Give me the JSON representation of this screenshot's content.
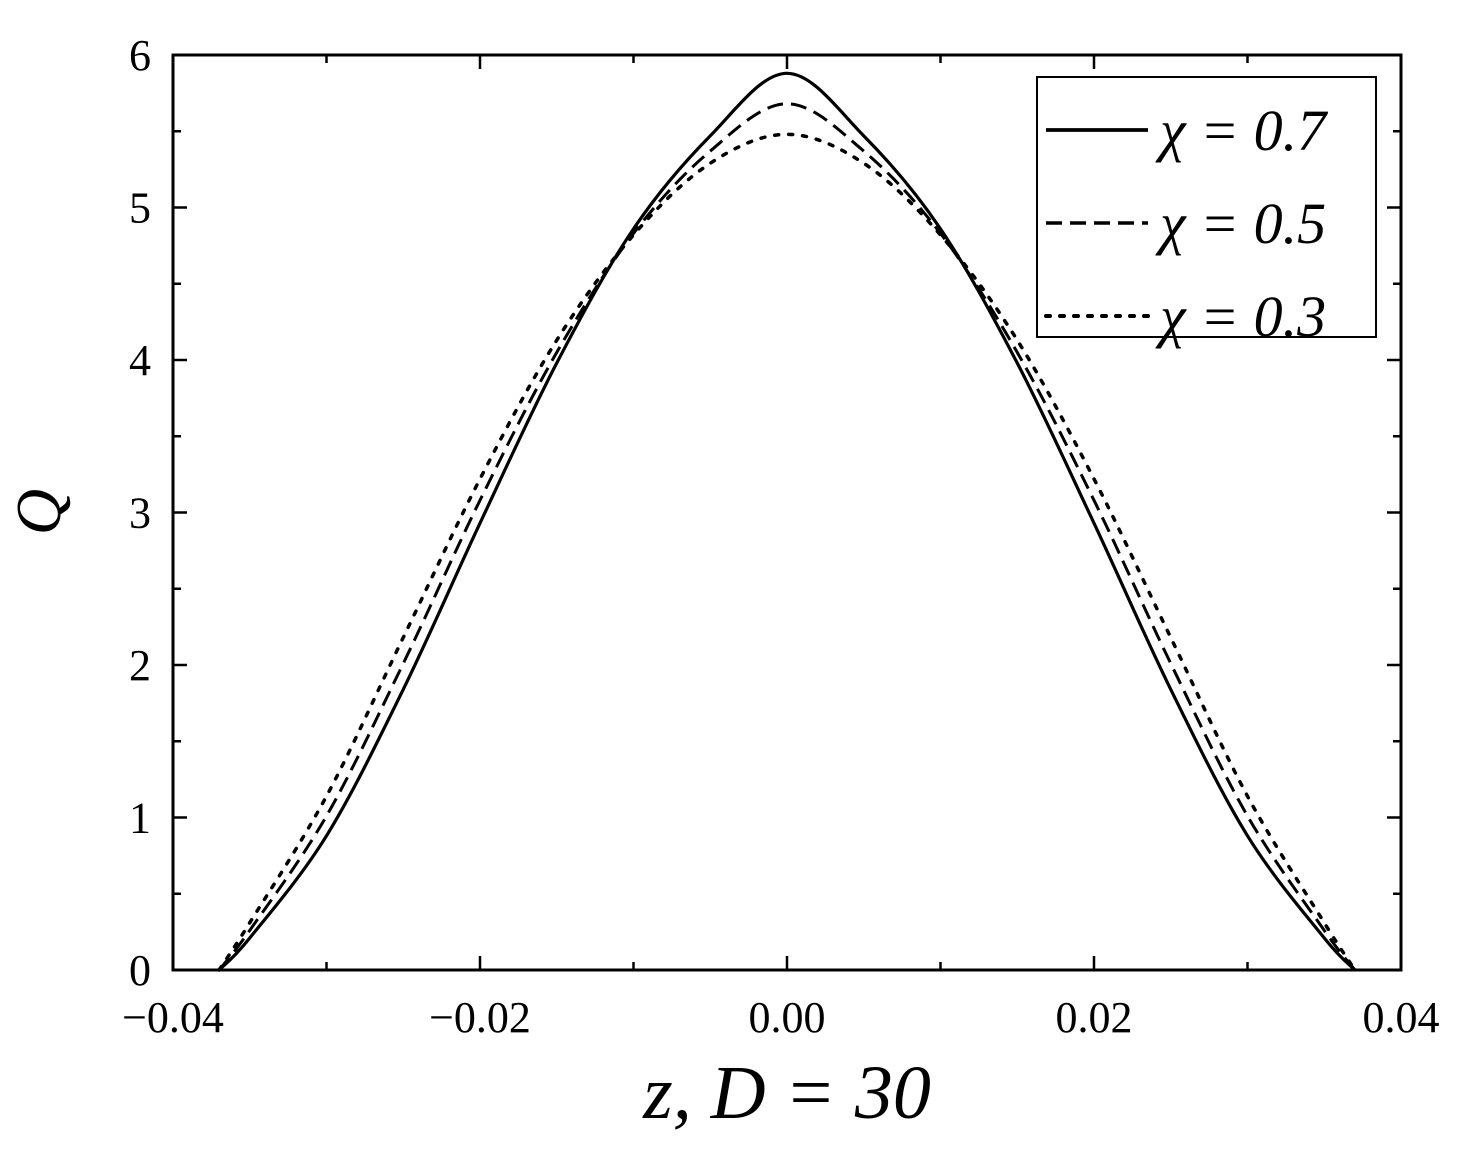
{
  "chart_data": {
    "type": "line",
    "xlabel": "z, D = 30",
    "ylabel": "Q",
    "xlim": [
      -0.04,
      0.04
    ],
    "ylim": [
      0,
      6
    ],
    "x_ticks": [
      -0.04,
      -0.02,
      0.0,
      0.02,
      0.04
    ],
    "x_tick_labels": [
      "−0.04",
      "−0.02",
      "0.00",
      "0.02",
      "0.04"
    ],
    "y_ticks": [
      0,
      1,
      2,
      3,
      4,
      5,
      6
    ],
    "y_tick_labels": [
      "0",
      "1",
      "2",
      "3",
      "4",
      "5",
      "6"
    ],
    "grid": false,
    "legend_position": "top-right",
    "x": [
      -0.037,
      -0.035,
      -0.03,
      -0.025,
      -0.02,
      -0.015,
      -0.01,
      -0.005,
      0.0,
      0.005,
      0.01,
      0.015,
      0.02,
      0.025,
      0.03,
      0.035,
      0.037
    ],
    "series": [
      {
        "name": "χ = 0.7",
        "style": "solid",
        "values": [
          0.0,
          0.21,
          0.88,
          1.84,
          2.93,
          3.98,
          4.86,
          5.47,
          5.88,
          5.47,
          4.86,
          3.98,
          2.93,
          1.84,
          0.88,
          0.21,
          0.0
        ]
      },
      {
        "name": "χ = 0.5",
        "style": "dashed",
        "values": [
          0.0,
          0.26,
          1.01,
          2.01,
          3.08,
          4.05,
          4.83,
          5.37,
          5.68,
          5.37,
          4.83,
          4.05,
          3.08,
          2.01,
          1.01,
          0.26,
          0.0
        ]
      },
      {
        "name": "χ = 0.3",
        "style": "dotted",
        "values": [
          0.0,
          0.31,
          1.14,
          2.18,
          3.22,
          4.13,
          4.82,
          5.29,
          5.48,
          5.29,
          4.82,
          4.13,
          3.22,
          2.18,
          1.14,
          0.31,
          0.0
        ]
      }
    ],
    "colors": {
      "axes": "#000000",
      "lines": "#000000"
    }
  }
}
